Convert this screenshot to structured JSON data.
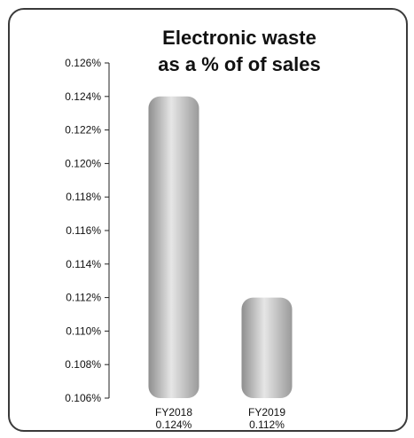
{
  "chart_data": {
    "type": "bar",
    "title_lines": [
      "Electronic waste",
      "as a % of of sales"
    ],
    "categories": [
      "FY2018",
      "FY2019"
    ],
    "category_values": [
      "0.124%",
      "0.112%"
    ],
    "values": [
      0.124,
      0.112
    ],
    "ylim": [
      0.106,
      0.126
    ],
    "yticks": [
      "0.126%",
      "0.124%",
      "0.122%",
      "0.120%",
      "0.118%",
      "0.116%",
      "0.114%",
      "0.112%",
      "0.110%",
      "0.108%",
      "0.106%"
    ],
    "xlabel": "",
    "ylabel": "",
    "grid": false,
    "bar_gradient": [
      "#8e8e8e",
      "#e6e6e6",
      "#9a9a9a"
    ]
  }
}
